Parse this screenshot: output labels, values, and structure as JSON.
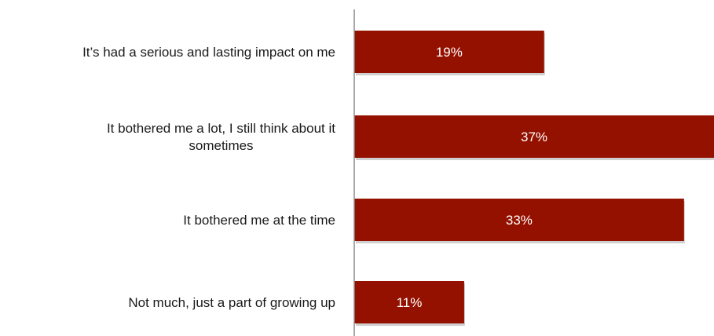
{
  "chart_data": {
    "type": "bar",
    "orientation": "horizontal",
    "categories": [
      "It’s had a serious and lasting impact on me",
      "It bothered me a lot, I still think about it sometimes",
      "It bothered me at the time",
      "Not much, just a part of growing up"
    ],
    "category_lines": [
      [
        "It’s had a serious and lasting impact on me"
      ],
      [
        "It bothered me a lot, I still think about it",
        "sometimes"
      ],
      [
        "It bothered me at the time"
      ],
      [
        "Not much, just a part of growing up"
      ]
    ],
    "values": [
      19,
      37,
      33,
      11
    ],
    "value_labels": [
      "19%",
      "37%",
      "33%",
      "11%"
    ],
    "unit": "%",
    "xlim": [
      0,
      36
    ],
    "grid": false,
    "legend": "none",
    "colors": {
      "bar": "#941100",
      "bar_shadow": "#cfcfcf",
      "axis": "#8c8c8c",
      "label": "#1a1a1a",
      "value_label": "#ffffff"
    }
  }
}
